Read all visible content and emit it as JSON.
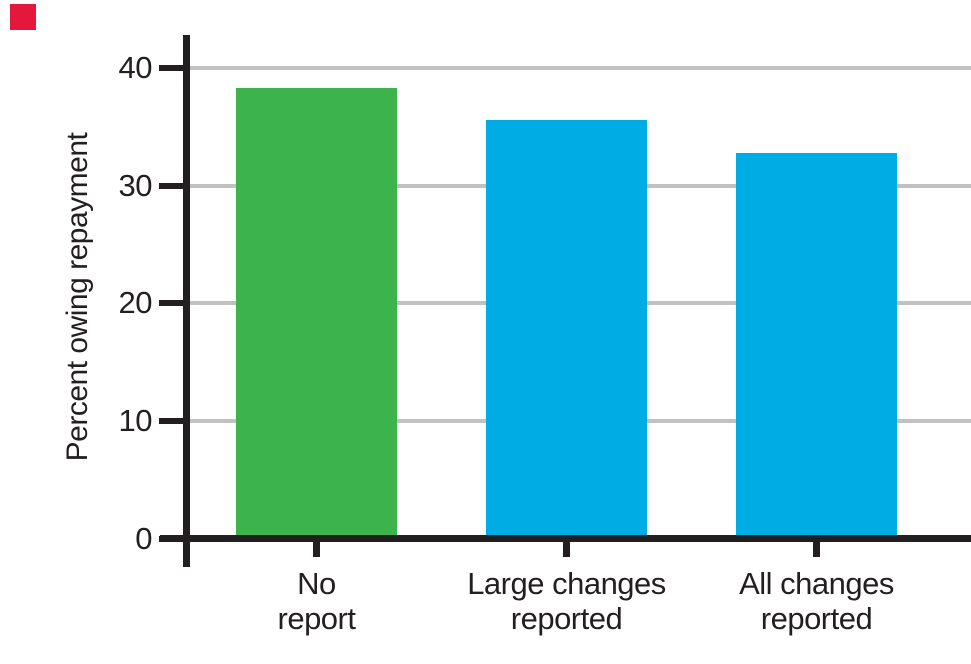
{
  "figure": {
    "marker_color": "#e4173c",
    "background": "#ffffff"
  },
  "chart_data": {
    "type": "bar",
    "title": "",
    "ylabel": "Percent owing repayment",
    "xlabel": "",
    "categories": [
      [
        "No",
        "report"
      ],
      [
        "Large changes",
        "reported"
      ],
      [
        "All changes",
        "reported"
      ]
    ],
    "values": [
      38.3,
      35.6,
      32.8
    ],
    "bar_colors": [
      "#3cb44b",
      "#00ace4",
      "#00ace4"
    ],
    "yticks": [
      0,
      10,
      20,
      30,
      40
    ],
    "gridlines_at": [
      10,
      20,
      30,
      40
    ],
    "ylim": [
      0,
      42.8
    ],
    "grid": "horizontal",
    "gridline_color": "#c1c1c1",
    "axis_color": "#231f20",
    "text_color": "#231f20",
    "legend": "none"
  }
}
